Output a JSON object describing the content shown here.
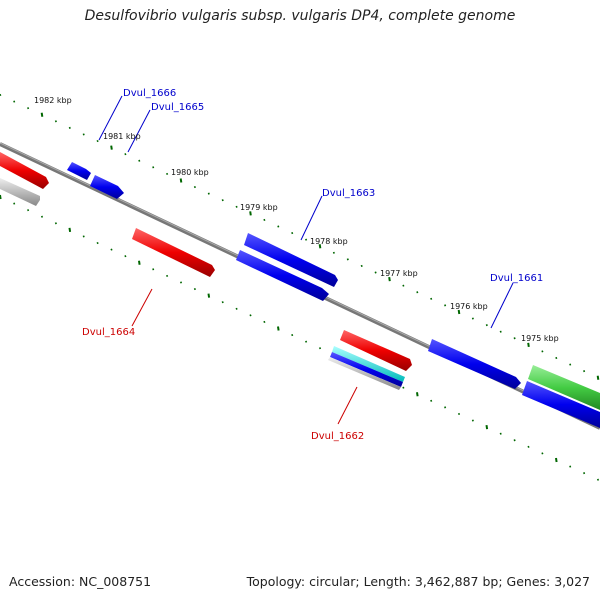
{
  "title": "Desulfovibrio vulgaris subsp. vulgaris DP4, complete genome",
  "footer": {
    "accession": "Accession: NC_008751",
    "topology": "Topology: circular; Length: 3,462,887 bp; Genes: 3,027"
  },
  "ticks": [
    "1982 kbp",
    "1981 kbp",
    "1980 kbp",
    "1979 kbp",
    "1978 kbp",
    "1977 kbp",
    "1976 kbp",
    "1975 kbp"
  ],
  "genes": [
    {
      "name": "Dvul_1666",
      "color": "#0000cc"
    },
    {
      "name": "Dvul_1665",
      "color": "#0000cc"
    },
    {
      "name": "Dvul_1664",
      "color": "#cc0000"
    },
    {
      "name": "Dvul_1663",
      "color": "#0000cc"
    },
    {
      "name": "Dvul_1662",
      "color": "#cc0000"
    },
    {
      "name": "Dvul_1661",
      "color": "#0000cc"
    }
  ],
  "colors": {
    "forward_gene": "#0000ee",
    "reverse_gene": "#ee0000",
    "rna": "#00cccc",
    "other": "#44cc44",
    "pseudo": "#bbbbbb",
    "backbone": "#888888",
    "tick": "#006600"
  }
}
